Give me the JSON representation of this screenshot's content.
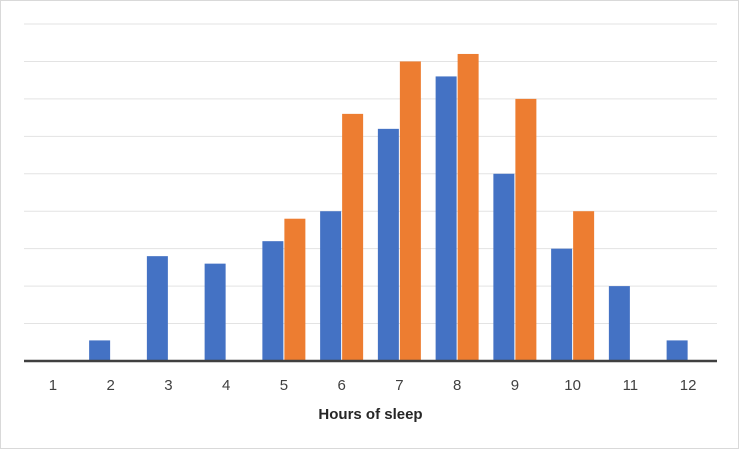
{
  "chart_data": {
    "type": "bar",
    "title": "",
    "xlabel": "Hours of sleep",
    "ylabel": "",
    "categories": [
      "1",
      "2",
      "3",
      "4",
      "5",
      "6",
      "7",
      "8",
      "9",
      "10",
      "11",
      "12"
    ],
    "series": [
      {
        "color": "#4472c4",
        "values": [
          0,
          0.55,
          2.8,
          2.6,
          3.2,
          4.0,
          6.2,
          7.6,
          5.0,
          3.0,
          2.0,
          0.55
        ]
      },
      {
        "color": "#ed7d31",
        "values": [
          0,
          0,
          0,
          0,
          3.8,
          6.6,
          8.0,
          8.2,
          7.0,
          4.0,
          0,
          0
        ]
      }
    ],
    "ylim": [
      0,
      9
    ],
    "grid": true,
    "y_tick_labels_shown": false,
    "legend": "none"
  }
}
